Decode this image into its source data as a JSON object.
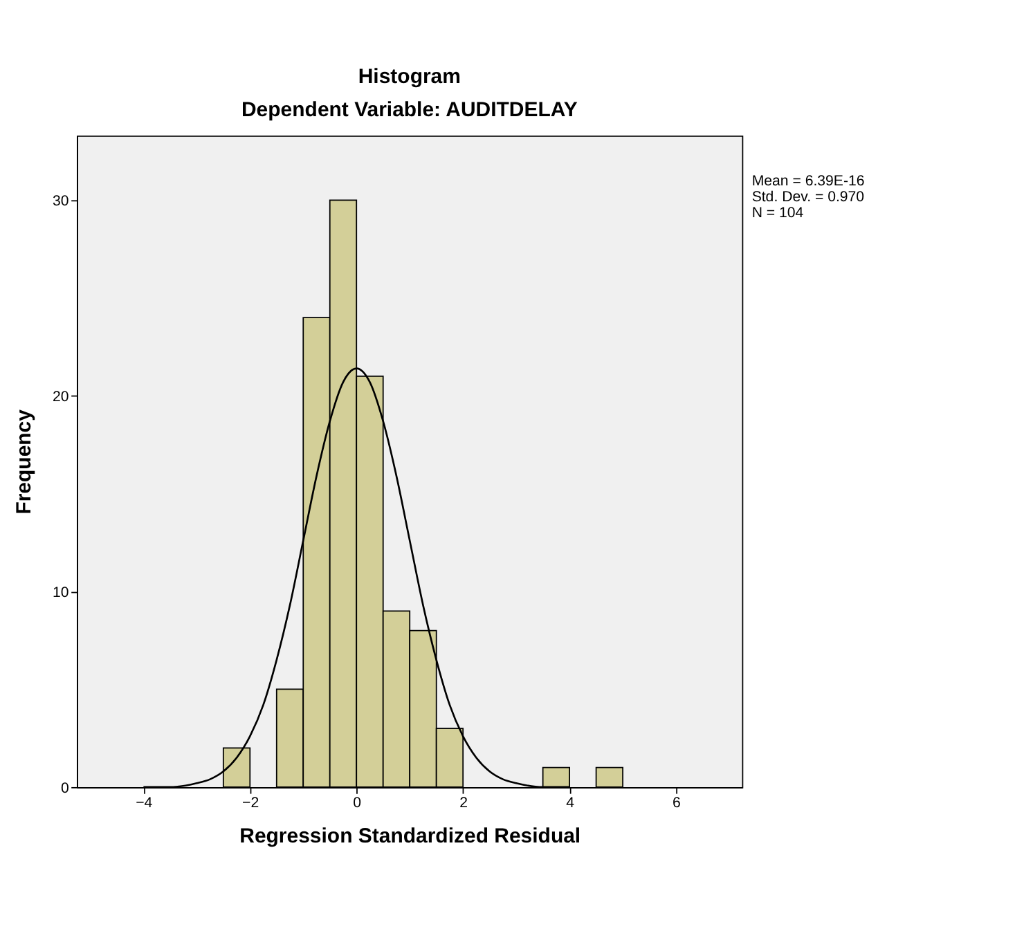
{
  "chart_data": {
    "type": "histogram",
    "title": "Histogram",
    "subtitle": "Dependent Variable: AUDITDELAY",
    "xlabel": "Regression Standardized Residual",
    "ylabel": "Frequency",
    "bins": [
      -2.5,
      -2.0,
      -1.5,
      -1.0,
      -0.5,
      0.0,
      0.5,
      1.0,
      1.5,
      2.0,
      2.5,
      3.0,
      3.5,
      4.0,
      4.5,
      5.0
    ],
    "values": [
      2,
      0,
      5,
      24,
      30,
      21,
      9,
      8,
      3,
      0,
      0,
      0,
      1,
      0,
      1
    ],
    "color": "#d3cf98",
    "series": [
      {
        "type": "line",
        "color": "#000000",
        "x": [
          -4,
          -3.5,
          -3,
          -2.75,
          -2.5,
          -2.25,
          -2,
          -1.75,
          -1.5,
          -1.25,
          -1,
          -0.75,
          -0.5,
          -0.25,
          0,
          0.25,
          0.5,
          0.75,
          1,
          1.25,
          1.5,
          1.75,
          2,
          2.25,
          2.5,
          2.75,
          3,
          3.5,
          4
        ],
        "values": [
          0.0,
          0.0,
          0.2,
          0.4,
          0.8,
          1.5,
          2.6,
          4.2,
          6.5,
          9.3,
          12.6,
          15.9,
          18.7,
          20.7,
          21.4,
          20.7,
          18.7,
          15.9,
          12.6,
          9.3,
          6.5,
          4.2,
          2.6,
          1.5,
          0.8,
          0.4,
          0.2,
          0.0,
          0.0
        ]
      }
    ],
    "xlim": [
      -5.25,
      7.24
    ],
    "ylim": [
      0,
      33.3
    ],
    "xticks": [
      -4,
      -2,
      0,
      2,
      4,
      6
    ],
    "yticks": [
      0,
      10,
      20,
      30
    ],
    "grid": false,
    "annotations": [
      "Mean = 6.39E-16",
      "Std. Dev. = 0.970",
      "N = 104"
    ]
  }
}
